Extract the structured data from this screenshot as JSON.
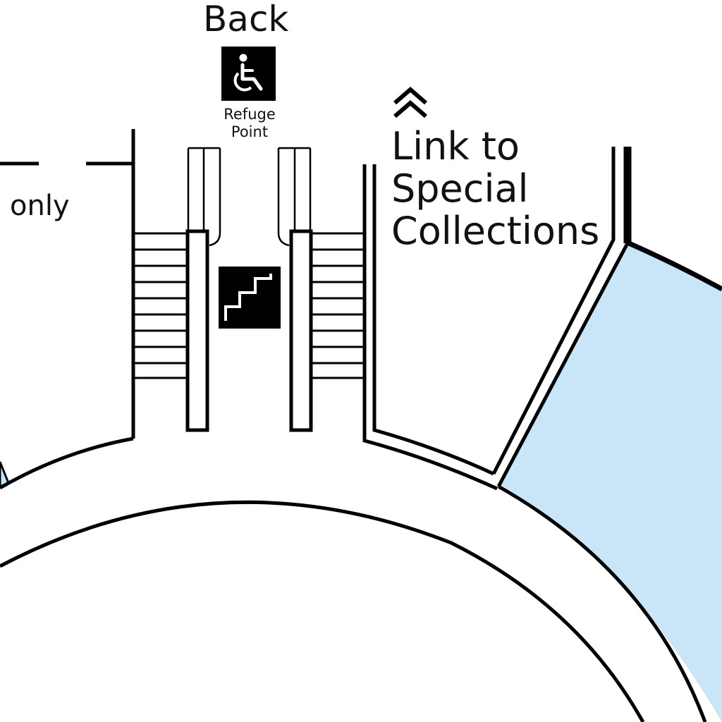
{
  "map": {
    "labels": {
      "back": "Back",
      "only": "only",
      "refuge_line1": "Refuge",
      "refuge_line2": "Point",
      "link_line1": "Link to",
      "link_line2": "Special",
      "link_line3": "Collections"
    },
    "icons": {
      "accessibility": "wheelchair-icon",
      "stairs": "stairs-icon",
      "direction": "double-chevron-up-icon"
    },
    "colors": {
      "room_fill": "#c9e6f8",
      "wall": "#000000",
      "background": "#ffffff"
    }
  }
}
